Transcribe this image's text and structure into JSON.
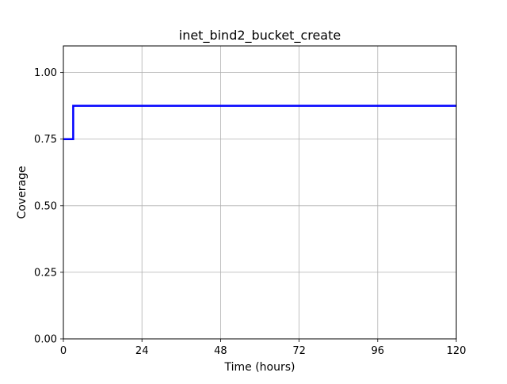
{
  "chart_data": {
    "type": "line",
    "title": "inet_bind2_bucket_create",
    "xlabel": "Time (hours)",
    "ylabel": "Coverage",
    "xlim": [
      0,
      120
    ],
    "ylim": [
      0,
      1.1
    ],
    "xticks": [
      0,
      24,
      48,
      72,
      96,
      120
    ],
    "xtick_labels": [
      "0",
      "24",
      "48",
      "72",
      "96",
      "120"
    ],
    "yticks": [
      0,
      0.25,
      0.5,
      0.75,
      1.0
    ],
    "ytick_labels": [
      "0.00",
      "0.25",
      "0.50",
      "0.75",
      "1.00"
    ],
    "grid": true,
    "legend": false,
    "series": [
      {
        "color": "#0000ff",
        "step": true,
        "x": [
          0,
          3,
          120
        ],
        "y": [
          0.75,
          0.875,
          0.875
        ]
      }
    ]
  }
}
